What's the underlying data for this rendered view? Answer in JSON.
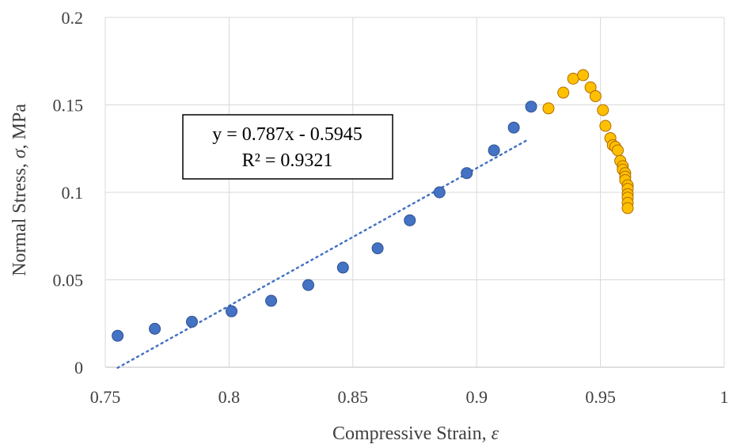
{
  "chart_data": {
    "type": "scatter",
    "xlabel_text": "Compressive Strain, ",
    "xlabel_symbol": "ε",
    "ylabel_text": "Normal Stress, ",
    "ylabel_symbol": "σ",
    "ylabel_unit": ", MPa",
    "xlim": [
      0.75,
      1.0
    ],
    "ylim": [
      0,
      0.2
    ],
    "x_ticks": [
      0.75,
      0.8,
      0.85,
      0.9,
      0.95,
      1.0
    ],
    "x_tick_labels": [
      "0.75",
      "0.8",
      "0.85",
      "0.9",
      "0.95",
      "1"
    ],
    "y_ticks": [
      0,
      0.05,
      0.1,
      0.15,
      0.2
    ],
    "y_tick_labels": [
      "0",
      "0.05",
      "0.1",
      "0.15",
      "0.2"
    ],
    "grid": true,
    "legend": "none",
    "series": [
      {
        "color": "#4472c4",
        "stroke": "#2f528f",
        "x": [
          0.755,
          0.77,
          0.785,
          0.801,
          0.817,
          0.832,
          0.846,
          0.86,
          0.873,
          0.885,
          0.896,
          0.907,
          0.915,
          0.922
        ],
        "y": [
          0.018,
          0.022,
          0.026,
          0.032,
          0.038,
          0.047,
          0.057,
          0.068,
          0.084,
          0.1,
          0.111,
          0.124,
          0.137,
          0.149
        ]
      },
      {
        "color": "#ffc000",
        "stroke": "#b26b00",
        "x": [
          0.929,
          0.935,
          0.939,
          0.943,
          0.946,
          0.948,
          0.951,
          0.952,
          0.954,
          0.955,
          0.956,
          0.957,
          0.958,
          0.959,
          0.959,
          0.96,
          0.96,
          0.96,
          0.961,
          0.961,
          0.961,
          0.961,
          0.961,
          0.961
        ],
        "y": [
          0.148,
          0.157,
          0.165,
          0.167,
          0.16,
          0.155,
          0.147,
          0.138,
          0.131,
          0.127,
          0.126,
          0.124,
          0.118,
          0.115,
          0.113,
          0.111,
          0.109,
          0.107,
          0.104,
          0.102,
          0.099,
          0.097,
          0.094,
          0.091
        ]
      }
    ],
    "trendline": {
      "color": "#4472c4",
      "slope": 0.787,
      "intercept": -0.5945,
      "x_range": [
        0.755,
        0.92
      ]
    },
    "annotation": {
      "line1": "y = 0.787x - 0.5945",
      "line2": "R² = 0.9321"
    }
  }
}
